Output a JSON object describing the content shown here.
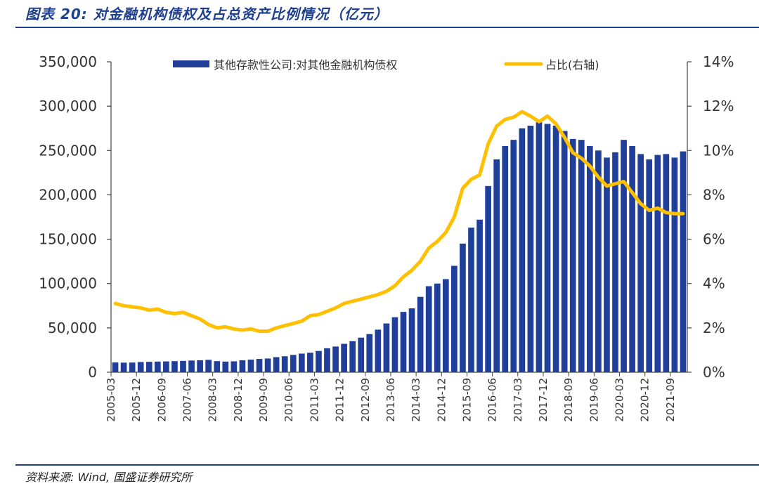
{
  "header": {
    "title": "图表 20:  对金融机构债权及占总资产比例情况（亿元）"
  },
  "footer": {
    "source": "资料来源:  Wind, 国盛证券研究所"
  },
  "colors": {
    "bar": "#1f3f9a",
    "line": "#ffc000",
    "rule": "#1f3f8f"
  },
  "chart_data": {
    "type": "bar",
    "title": "",
    "legend_position": "top",
    "grid": false,
    "x_tick_labels": [
      "2005-03",
      "2005-12",
      "2006-09",
      "2007-06",
      "2008-03",
      "2008-12",
      "2009-09",
      "2010-06",
      "2011-03",
      "2011-12",
      "2012-09",
      "2013-06",
      "2014-03",
      "2014-12",
      "2015-09",
      "2016-06",
      "2017-03",
      "2017-12",
      "2018-09",
      "2019-06",
      "2020-03",
      "2020-12",
      "2021-09"
    ],
    "x_range": [
      "2005-03",
      "2021-12"
    ],
    "y_left": {
      "ylim": [
        0,
        350000
      ],
      "ticks": [
        0,
        50000,
        100000,
        150000,
        200000,
        250000,
        300000,
        350000
      ],
      "tick_labels": [
        "0",
        "50,000",
        "100,000",
        "150,000",
        "200,000",
        "250,000",
        "300,000",
        "350,000"
      ]
    },
    "y_right": {
      "ylim": [
        0,
        14
      ],
      "ticks": [
        0,
        2,
        4,
        6,
        8,
        10,
        12,
        14
      ],
      "tick_labels": [
        "0%",
        "2%",
        "4%",
        "6%",
        "8%",
        "10%",
        "12%",
        "14%"
      ]
    },
    "series": [
      {
        "name": "其他存款性公司:对其他金融机构债权",
        "type": "bar",
        "axis": "left",
        "points": [
          [
            "2005-03",
            11000
          ],
          [
            "2005-06",
            10800
          ],
          [
            "2005-09",
            10900
          ],
          [
            "2005-12",
            11500
          ],
          [
            "2006-03",
            11800
          ],
          [
            "2006-06",
            12000
          ],
          [
            "2006-09",
            12200
          ],
          [
            "2006-12",
            12500
          ],
          [
            "2007-03",
            12800
          ],
          [
            "2007-06",
            13200
          ],
          [
            "2007-09",
            13500
          ],
          [
            "2007-12",
            14000
          ],
          [
            "2008-03",
            12500
          ],
          [
            "2008-06",
            12000
          ],
          [
            "2008-09",
            12300
          ],
          [
            "2008-12",
            13500
          ],
          [
            "2009-03",
            14200
          ],
          [
            "2009-06",
            15000
          ],
          [
            "2009-09",
            15500
          ],
          [
            "2009-12",
            17000
          ],
          [
            "2010-03",
            18000
          ],
          [
            "2010-06",
            19500
          ],
          [
            "2010-09",
            21000
          ],
          [
            "2010-12",
            22000
          ],
          [
            "2011-03",
            24000
          ],
          [
            "2011-06",
            27000
          ],
          [
            "2011-09",
            29000
          ],
          [
            "2011-12",
            32000
          ],
          [
            "2012-03",
            35000
          ],
          [
            "2012-06",
            39000
          ],
          [
            "2012-09",
            43000
          ],
          [
            "2012-12",
            48000
          ],
          [
            "2013-03",
            55000
          ],
          [
            "2013-06",
            62000
          ],
          [
            "2013-09",
            68000
          ],
          [
            "2013-12",
            72000
          ],
          [
            "2014-03",
            85000
          ],
          [
            "2014-06",
            97000
          ],
          [
            "2014-09",
            100000
          ],
          [
            "2014-12",
            105000
          ],
          [
            "2015-03",
            120000
          ],
          [
            "2015-06",
            145000
          ],
          [
            "2015-09",
            163000
          ],
          [
            "2015-12",
            172000
          ],
          [
            "2016-03",
            210000
          ],
          [
            "2016-06",
            240000
          ],
          [
            "2016-09",
            255000
          ],
          [
            "2016-12",
            262000
          ],
          [
            "2017-03",
            275000
          ],
          [
            "2017-06",
            278000
          ],
          [
            "2017-09",
            282000
          ],
          [
            "2017-12",
            280000
          ],
          [
            "2018-03",
            278000
          ],
          [
            "2018-06",
            272000
          ],
          [
            "2018-09",
            263000
          ],
          [
            "2018-12",
            262000
          ],
          [
            "2019-03",
            255000
          ],
          [
            "2019-06",
            250000
          ],
          [
            "2019-09",
            242000
          ],
          [
            "2019-12",
            248000
          ],
          [
            "2020-03",
            262000
          ],
          [
            "2020-06",
            255000
          ],
          [
            "2020-09",
            246000
          ],
          [
            "2020-12",
            240000
          ],
          [
            "2021-03",
            245000
          ],
          [
            "2021-06",
            246000
          ],
          [
            "2021-09",
            242000
          ],
          [
            "2021-12",
            249000
          ]
        ]
      },
      {
        "name": "占比(右轴)",
        "type": "line",
        "axis": "right",
        "points": [
          [
            "2005-03",
            3.1
          ],
          [
            "2005-06",
            3.0
          ],
          [
            "2005-09",
            2.95
          ],
          [
            "2005-12",
            2.9
          ],
          [
            "2006-03",
            2.8
          ],
          [
            "2006-06",
            2.85
          ],
          [
            "2006-09",
            2.7
          ],
          [
            "2006-12",
            2.65
          ],
          [
            "2007-03",
            2.7
          ],
          [
            "2007-06",
            2.55
          ],
          [
            "2007-09",
            2.4
          ],
          [
            "2007-12",
            2.15
          ],
          [
            "2008-03",
            2.0
          ],
          [
            "2008-06",
            2.05
          ],
          [
            "2008-09",
            1.95
          ],
          [
            "2008-12",
            1.9
          ],
          [
            "2009-03",
            1.95
          ],
          [
            "2009-06",
            1.85
          ],
          [
            "2009-09",
            1.85
          ],
          [
            "2009-12",
            2.0
          ],
          [
            "2010-03",
            2.1
          ],
          [
            "2010-06",
            2.2
          ],
          [
            "2010-09",
            2.3
          ],
          [
            "2010-12",
            2.55
          ],
          [
            "2011-03",
            2.6
          ],
          [
            "2011-06",
            2.75
          ],
          [
            "2011-09",
            2.9
          ],
          [
            "2011-12",
            3.1
          ],
          [
            "2012-03",
            3.2
          ],
          [
            "2012-06",
            3.3
          ],
          [
            "2012-09",
            3.4
          ],
          [
            "2012-12",
            3.5
          ],
          [
            "2013-03",
            3.65
          ],
          [
            "2013-06",
            3.9
          ],
          [
            "2013-09",
            4.3
          ],
          [
            "2013-12",
            4.6
          ],
          [
            "2014-03",
            5.0
          ],
          [
            "2014-06",
            5.6
          ],
          [
            "2014-09",
            5.9
          ],
          [
            "2014-12",
            6.3
          ],
          [
            "2015-03",
            7.0
          ],
          [
            "2015-06",
            8.3
          ],
          [
            "2015-09",
            8.7
          ],
          [
            "2015-12",
            8.9
          ],
          [
            "2016-03",
            10.3
          ],
          [
            "2016-06",
            11.1
          ],
          [
            "2016-09",
            11.4
          ],
          [
            "2016-12",
            11.5
          ],
          [
            "2017-03",
            11.75
          ],
          [
            "2017-06",
            11.55
          ],
          [
            "2017-09",
            11.3
          ],
          [
            "2017-12",
            11.55
          ],
          [
            "2018-03",
            11.2
          ],
          [
            "2018-06",
            10.6
          ],
          [
            "2018-09",
            9.9
          ],
          [
            "2018-12",
            9.65
          ],
          [
            "2019-03",
            9.3
          ],
          [
            "2019-06",
            8.8
          ],
          [
            "2019-09",
            8.4
          ],
          [
            "2019-12",
            8.5
          ],
          [
            "2020-03",
            8.6
          ],
          [
            "2020-06",
            8.1
          ],
          [
            "2020-09",
            7.6
          ],
          [
            "2020-12",
            7.3
          ],
          [
            "2021-03",
            7.4
          ],
          [
            "2021-06",
            7.2
          ],
          [
            "2021-09",
            7.15
          ],
          [
            "2021-12",
            7.15
          ]
        ]
      }
    ]
  }
}
